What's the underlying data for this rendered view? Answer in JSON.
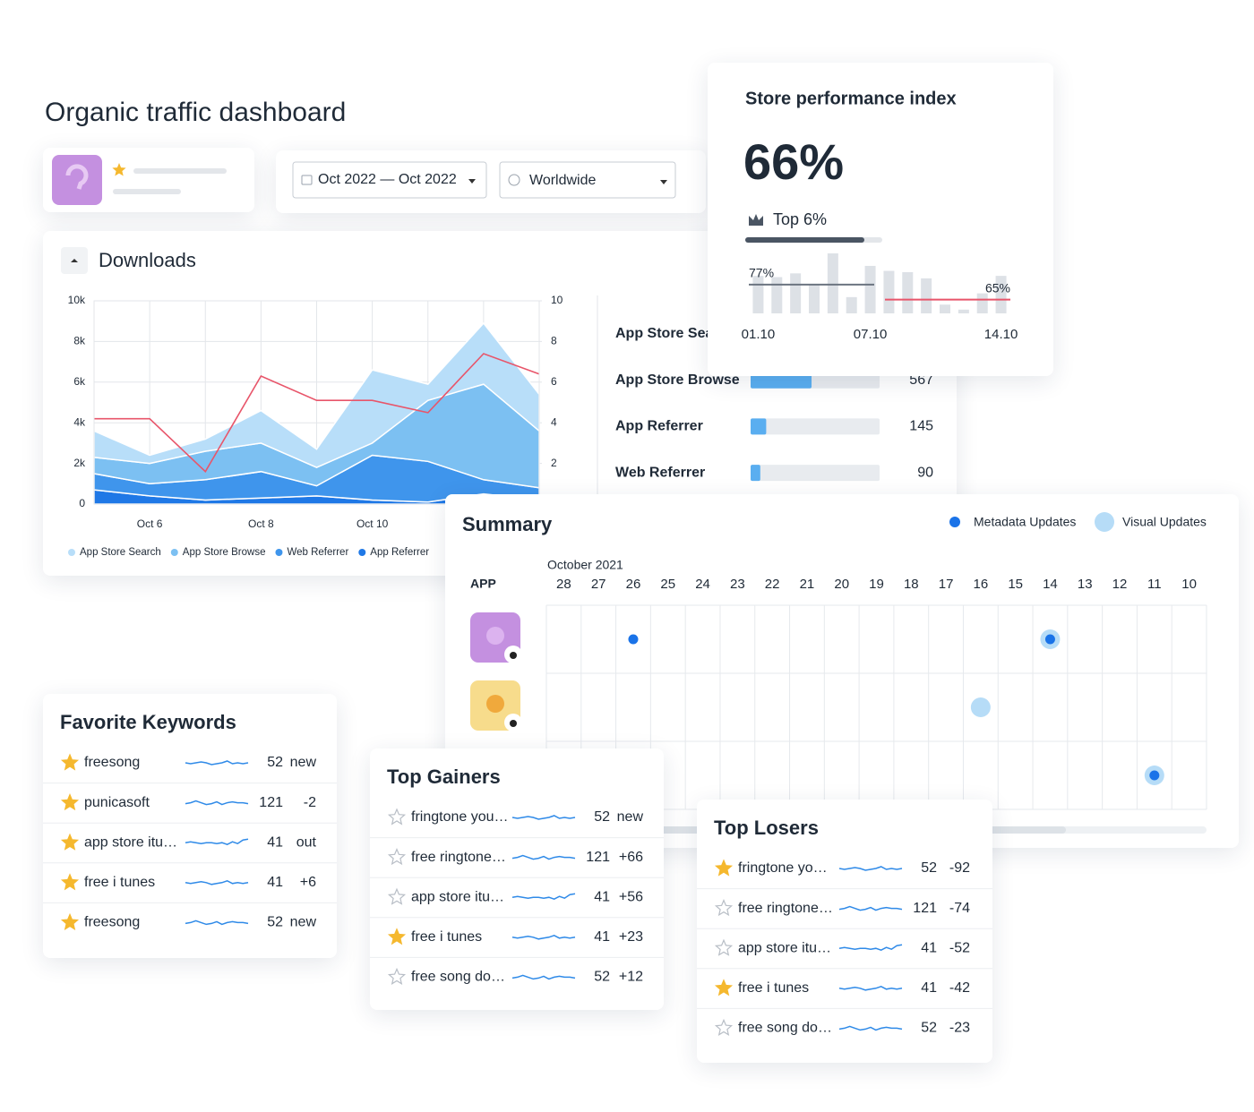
{
  "header": {
    "title": "Organic traffic dashboard"
  },
  "filters": {
    "date_range": "Oct 2022 — Oct 2022",
    "region": "Worldwide"
  },
  "downloads": {
    "title": "Downloads",
    "chart_data": {
      "type": "area",
      "stacked": true,
      "categories": [
        null,
        "Oct 6",
        null,
        "Oct 8",
        null,
        "Oct 10",
        null,
        null,
        null
      ],
      "series": [
        {
          "name": "App Store Search",
          "color": "#b8def9",
          "values": [
            1300,
            400,
            600,
            1600,
            900,
            3600,
            800,
            3000,
            1800
          ]
        },
        {
          "name": "App Store Browse",
          "color": "#7cc0f2",
          "values": [
            800,
            1000,
            1400,
            1400,
            900,
            600,
            3000,
            4700,
            2800
          ]
        },
        {
          "name": "Web Referrer",
          "color": "#3f95ec",
          "values": [
            800,
            600,
            1000,
            1300,
            500,
            2200,
            2000,
            700,
            600
          ]
        },
        {
          "name": "App Referrer",
          "color": "#1f78e6",
          "values": [
            700,
            400,
            200,
            300,
            400,
            200,
            100,
            500,
            200
          ]
        },
        {
          "color": "#e8556a",
          "axis": "y2",
          "values": [
            4.2,
            4.2,
            1.6,
            6.3,
            5.1,
            5.1,
            4.5,
            7.4,
            6.4
          ]
        }
      ],
      "ylim": [
        0,
        10000
      ],
      "yticks": [
        0,
        {
          "value": 2000,
          "label": "2k"
        },
        {
          "value": 4000,
          "label": "4k"
        },
        {
          "value": 6000,
          "label": "6k"
        },
        {
          "value": 8000,
          "label": "8k"
        },
        {
          "value": 10000,
          "label": "10k"
        }
      ],
      "y2lim": [
        0,
        10
      ],
      "y2ticks": [
        2,
        4,
        6,
        8,
        10
      ],
      "grid": true
    },
    "sources": {
      "xlim": [
        0,
        1200
      ],
      "color": "#5aaef0",
      "rows": [
        {
          "label": "App Store Sea"
        },
        {
          "label": "App Store Browse",
          "value": 567
        },
        {
          "label": "App Referrer",
          "value": 145
        },
        {
          "label": "Web Referrer",
          "value": 90
        }
      ]
    }
  },
  "performance": {
    "title": "Store performance index",
    "index": "66%",
    "rank": "Top 6%",
    "chart_data": {
      "type": "bar",
      "categories": [
        "01.10",
        null,
        null,
        null,
        null,
        null,
        "07.10",
        null,
        null,
        null,
        null,
        null,
        null,
        "14.10"
      ],
      "values": [
        84,
        83,
        86,
        77,
        102,
        67,
        92,
        88,
        87,
        82,
        61,
        57,
        70,
        84
      ],
      "color": "#dde1e6",
      "ylim": [
        54,
        102
      ],
      "reference_lines": [
        {
          "value": 77,
          "label": "77%",
          "color": "#6b7480"
        },
        {
          "value": 65,
          "label": "65%",
          "color": "#e8556a"
        }
      ]
    }
  },
  "summary": {
    "title": "Summary",
    "legend": {
      "metadata": "Metadata Updates",
      "visual": "Visual Updates"
    },
    "metadata_color": "#1a73e8",
    "visual_color": "#b6dcf7",
    "month": "October 2021",
    "app_header": "APP",
    "days": [
      28,
      27,
      26,
      25,
      24,
      23,
      22,
      21,
      20,
      19,
      18,
      17,
      16,
      15,
      14,
      13,
      12,
      11,
      10
    ],
    "rows": [
      {
        "metadata": [
          26,
          14
        ],
        "visual": [
          14
        ]
      },
      {
        "visual": [
          16
        ]
      },
      {
        "metadata": [
          11
        ],
        "visual": [
          11
        ]
      }
    ]
  },
  "favorites": {
    "title": "Favorite Keywords",
    "rows": [
      {
        "starred": true,
        "keyword": "freesong",
        "rank": 52,
        "change": "new",
        "change_color": "#3dba6a"
      },
      {
        "starred": true,
        "keyword": "punicasoft",
        "rank": 121,
        "change": "-2",
        "change_color": "#e5484d"
      },
      {
        "starred": true,
        "keyword": "app store itu…",
        "rank": 41,
        "change": "out",
        "change_color": "#e5484d"
      },
      {
        "starred": true,
        "keyword": "free i tunes",
        "rank": 41,
        "change": "+6",
        "change_color": "#3dba6a"
      },
      {
        "starred": true,
        "keyword": "freesong",
        "rank": 52,
        "change": "new",
        "change_color": "#3dba6a"
      }
    ]
  },
  "gainers": {
    "title": "Top Gainers",
    "rows": [
      {
        "starred": false,
        "keyword": "fringtone you…",
        "rank": 52,
        "change": "new",
        "change_color": "#3dba6a"
      },
      {
        "starred": false,
        "keyword": "free ringtone…",
        "rank": 121,
        "change": "+66",
        "change_color": "#3dba6a"
      },
      {
        "starred": false,
        "keyword": "app store itu…",
        "rank": 41,
        "change": "+56",
        "change_color": "#3dba6a"
      },
      {
        "starred": true,
        "keyword": "free i tunes",
        "rank": 41,
        "change": "+23",
        "change_color": "#3dba6a"
      },
      {
        "starred": false,
        "keyword": "free song do…",
        "rank": 52,
        "change": "+12",
        "change_color": "#3dba6a"
      }
    ]
  },
  "losers": {
    "title": "Top Losers",
    "rows": [
      {
        "starred": true,
        "keyword": "fringtone yo…",
        "rank": 52,
        "change": "-92",
        "change_color": "#e5484d"
      },
      {
        "starred": false,
        "keyword": "free ringtone…",
        "rank": 121,
        "change": "-74",
        "change_color": "#e5484d"
      },
      {
        "starred": false,
        "keyword": "app store itu…",
        "rank": 41,
        "change": "-52",
        "change_color": "#e5484d"
      },
      {
        "starred": true,
        "keyword": "free i tunes",
        "rank": 41,
        "change": "-42",
        "change_color": "#e5484d"
      },
      {
        "starred": false,
        "keyword": "free song do…",
        "rank": 52,
        "change": "-23",
        "change_color": "#e5484d"
      }
    ]
  }
}
